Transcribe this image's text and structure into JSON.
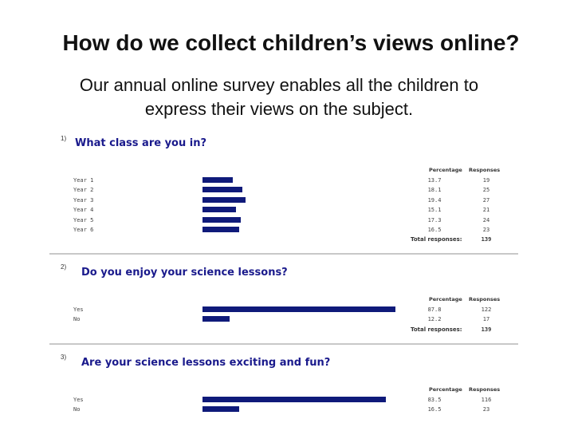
{
  "slide": {
    "title": "How do we collect children’s views online?",
    "subtitle_line1": "Our annual online survey enables all the children to",
    "subtitle_line2": "express their views on the subject."
  },
  "table_headers": {
    "percentage": "Percentage",
    "responses": "Responses",
    "total_label": "Total responses:"
  },
  "chart_data": [
    {
      "type": "bar",
      "question_number": "1)",
      "title": "What class are you in?",
      "categories": [
        "Year 1",
        "Year 2",
        "Year 3",
        "Year 4",
        "Year 5",
        "Year 6"
      ],
      "percentages": [
        "13.7",
        "18.1",
        "19.4",
        "15.1",
        "17.3",
        "16.5"
      ],
      "values": [
        13.7,
        18.1,
        19.4,
        15.1,
        17.3,
        16.5
      ],
      "responses": [
        "19",
        "25",
        "27",
        "21",
        "24",
        "23"
      ],
      "total": "139"
    },
    {
      "type": "bar",
      "question_number": "2)",
      "title": "Do you enjoy your science lessons?",
      "categories": [
        "Yes",
        "No"
      ],
      "percentages": [
        "87.8",
        "12.2"
      ],
      "values": [
        87.8,
        12.2
      ],
      "responses": [
        "122",
        "17"
      ],
      "total": "139"
    },
    {
      "type": "bar",
      "question_number": "3)",
      "title": "Are your science lessons exciting and fun?",
      "categories": [
        "Yes",
        "No"
      ],
      "percentages": [
        "83.5",
        "16.5"
      ],
      "values": [
        83.5,
        16.5
      ],
      "responses": [
        "116",
        "23"
      ]
    }
  ],
  "colors": {
    "bar": "#0f1a7a",
    "question_title": "#1a1a8c"
  }
}
